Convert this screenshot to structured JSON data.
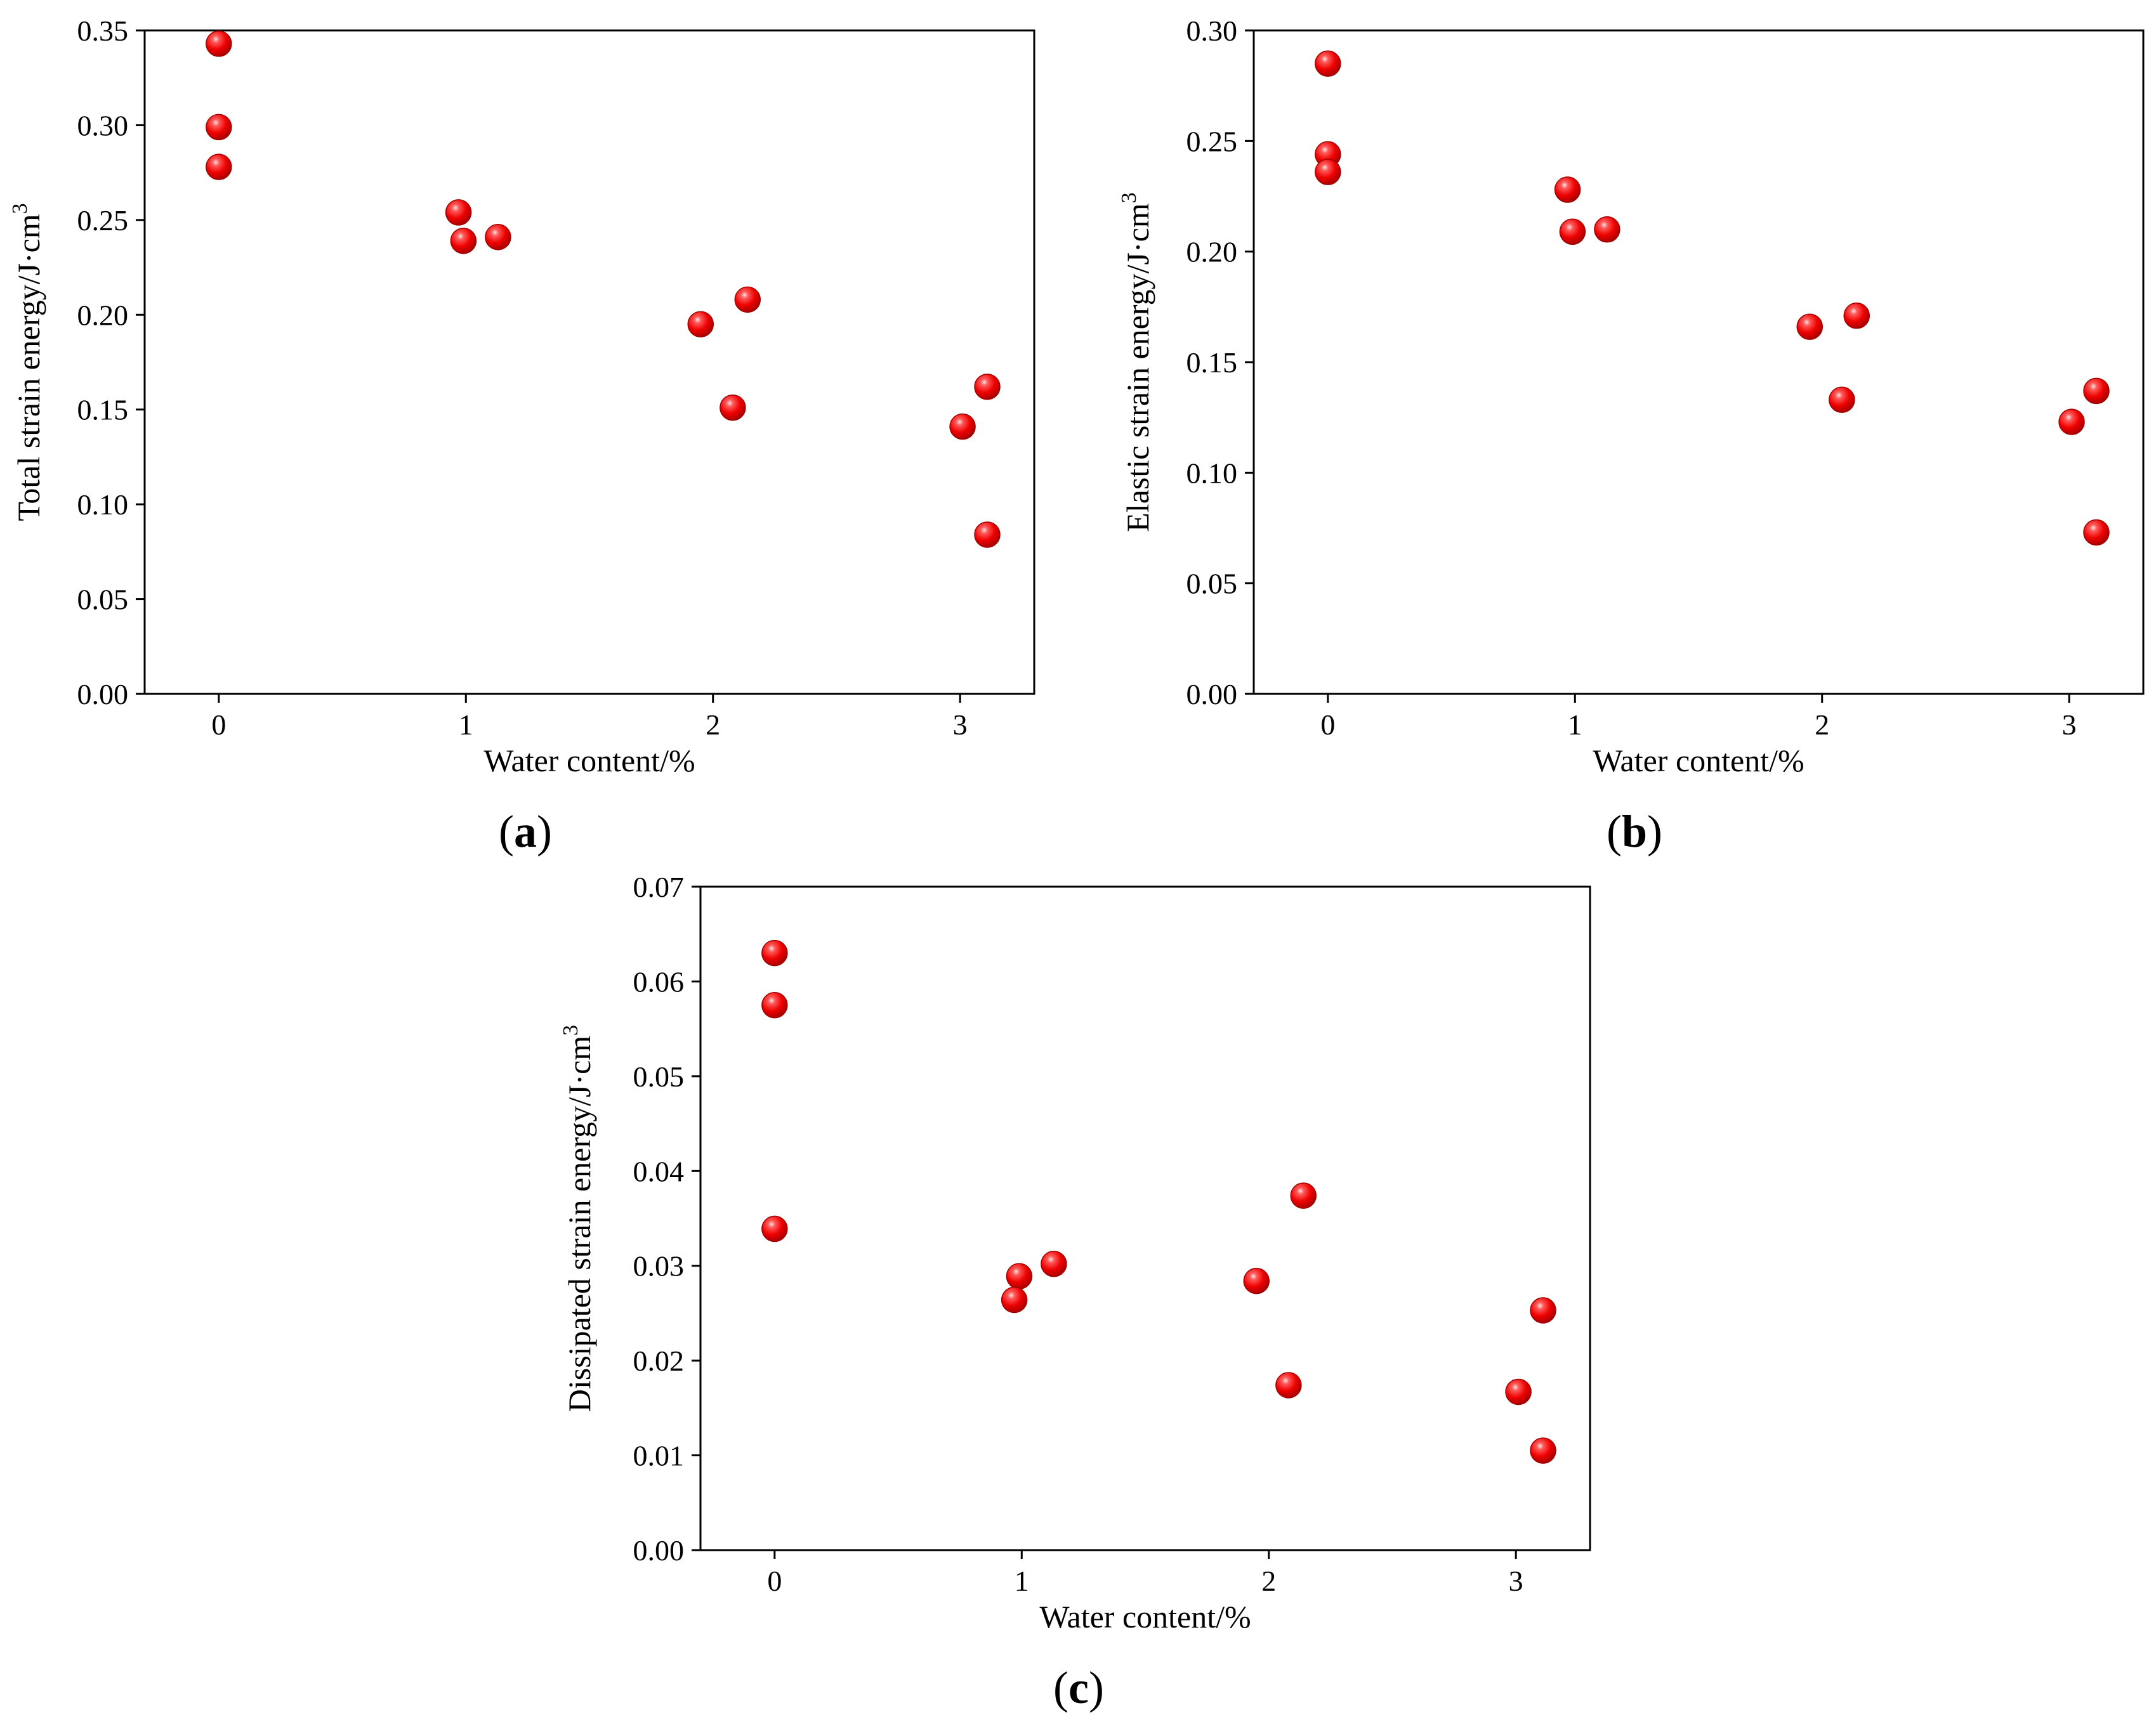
{
  "colors": {
    "marker": "#ee0000",
    "marker_dark": "#a00000",
    "marker_highlight": "#ffd0d0",
    "axis": "#000000"
  },
  "chart_data": [
    {
      "id": "a",
      "type": "scatter",
      "panel_label": "a",
      "title": "",
      "xlabel": "Water content/%",
      "ylabel_main": "Total strain energy/J·cm",
      "ylabel_sup": "3",
      "xlim": [
        -0.3,
        3.3
      ],
      "ylim": [
        0,
        0.35
      ],
      "xticks": [
        0,
        1,
        2,
        3
      ],
      "xtick_labels": [
        "0",
        "1",
        "2",
        "3"
      ],
      "yticks": [
        0,
        0.05,
        0.1,
        0.15,
        0.2,
        0.25,
        0.3,
        0.35
      ],
      "ytick_labels": [
        "0.00",
        "0.05",
        "0.10",
        "0.15",
        "0.20",
        "0.25",
        "0.30",
        "0.35"
      ],
      "points": [
        {
          "x": 0.0,
          "y": 0.343
        },
        {
          "x": 0.0,
          "y": 0.299
        },
        {
          "x": 0.0,
          "y": 0.278
        },
        {
          "x": 0.97,
          "y": 0.254
        },
        {
          "x": 0.99,
          "y": 0.239
        },
        {
          "x": 1.13,
          "y": 0.241
        },
        {
          "x": 1.95,
          "y": 0.195
        },
        {
          "x": 2.14,
          "y": 0.208
        },
        {
          "x": 2.08,
          "y": 0.151
        },
        {
          "x": 3.11,
          "y": 0.162
        },
        {
          "x": 3.01,
          "y": 0.141
        },
        {
          "x": 3.11,
          "y": 0.084
        }
      ]
    },
    {
      "id": "b",
      "type": "scatter",
      "panel_label": "b",
      "title": "",
      "xlabel": "Water content/%",
      "ylabel_main": "Elastic strain energy/J·cm",
      "ylabel_sup": "3",
      "xlim": [
        -0.3,
        3.3
      ],
      "ylim": [
        0,
        0.3
      ],
      "xticks": [
        0,
        1,
        2,
        3
      ],
      "xtick_labels": [
        "0",
        "1",
        "2",
        "3"
      ],
      "yticks": [
        0,
        0.05,
        0.1,
        0.15,
        0.2,
        0.25,
        0.3
      ],
      "ytick_labels": [
        "0.00",
        "0.05",
        "0.10",
        "0.15",
        "0.20",
        "0.25",
        "0.30"
      ],
      "points": [
        {
          "x": 0.0,
          "y": 0.285
        },
        {
          "x": 0.0,
          "y": 0.244
        },
        {
          "x": 0.0,
          "y": 0.236
        },
        {
          "x": 0.97,
          "y": 0.228
        },
        {
          "x": 0.99,
          "y": 0.209
        },
        {
          "x": 1.13,
          "y": 0.21
        },
        {
          "x": 1.95,
          "y": 0.166
        },
        {
          "x": 2.14,
          "y": 0.171
        },
        {
          "x": 2.08,
          "y": 0.133
        },
        {
          "x": 3.11,
          "y": 0.137
        },
        {
          "x": 3.01,
          "y": 0.123
        },
        {
          "x": 3.11,
          "y": 0.073
        }
      ]
    },
    {
      "id": "c",
      "type": "scatter",
      "panel_label": "c",
      "title": "",
      "xlabel": "Water content/%",
      "ylabel_main": "Dissipated strain energy/J·cm",
      "ylabel_sup": "3",
      "xlim": [
        -0.3,
        3.3
      ],
      "ylim": [
        0,
        0.07
      ],
      "xticks": [
        0,
        1,
        2,
        3
      ],
      "xtick_labels": [
        "0",
        "1",
        "2",
        "3"
      ],
      "yticks": [
        0,
        0.01,
        0.02,
        0.03,
        0.04,
        0.05,
        0.06,
        0.07
      ],
      "ytick_labels": [
        "0.00",
        "0.01",
        "0.02",
        "0.03",
        "0.04",
        "0.05",
        "0.06",
        "0.07"
      ],
      "points": [
        {
          "x": 0.0,
          "y": 0.063
        },
        {
          "x": 0.0,
          "y": 0.0575
        },
        {
          "x": 0.0,
          "y": 0.0339
        },
        {
          "x": 0.99,
          "y": 0.0289
        },
        {
          "x": 1.13,
          "y": 0.0302
        },
        {
          "x": 0.97,
          "y": 0.0264
        },
        {
          "x": 1.95,
          "y": 0.0284
        },
        {
          "x": 2.14,
          "y": 0.0374
        },
        {
          "x": 2.08,
          "y": 0.0174
        },
        {
          "x": 3.11,
          "y": 0.0253
        },
        {
          "x": 3.01,
          "y": 0.0167
        },
        {
          "x": 3.11,
          "y": 0.0105
        }
      ]
    }
  ]
}
